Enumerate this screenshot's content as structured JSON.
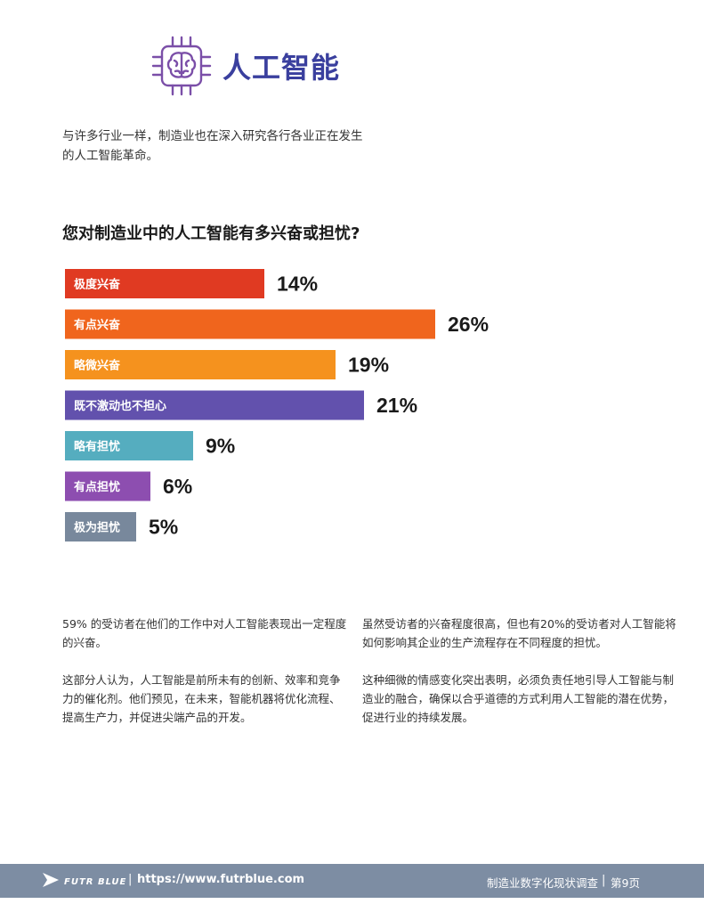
{
  "header": {
    "title": "人工智能",
    "icon": "brain-chip-icon",
    "icon_color": "#7b4fa8",
    "title_color": "#3a3f9e"
  },
  "intro": "与许多行业一样，制造业也在深入研究各行各业正在发生的人工智能革命。",
  "question": "您对制造业中的人工智能有多兴奋或担忧?",
  "chart_data": {
    "type": "bar",
    "orientation": "horizontal",
    "categories": [
      "极度兴奋",
      "有点兴奋",
      "略微兴奋",
      "既不激动也不担心",
      "略有担忧",
      "有点担忧",
      "极为担忧"
    ],
    "values": [
      14,
      26,
      19,
      21,
      9,
      6,
      5
    ],
    "value_labels": [
      "14%",
      "26%",
      "19%",
      "21%",
      "9%",
      "6%",
      "5%"
    ],
    "colors": [
      "#e03a22",
      "#f0651d",
      "#f5921e",
      "#6251ad",
      "#55adbf",
      "#8d4eb0",
      "#78889c"
    ],
    "unit": "%"
  },
  "columns": {
    "left": [
      "59% 的受访者在他们的工作中对人工智能表现出一定程度的兴奋。",
      "这部分人认为，人工智能是前所未有的创新、效率和竞争力的催化剂。他们预见，在未来，智能机器将优化流程、提高生产力，并促进尖端产品的开发。"
    ],
    "right": [
      "虽然受访者的兴奋程度很高，但也有20%的受访者对人工智能将如何影响其企业的生产流程存在不同程度的担忧。",
      "这种细微的情感变化突出表明，必须负责任地引导人工智能与制造业的融合，确保以合乎道德的方式利用人工智能的潜在优势，促进行业的持续发展。"
    ]
  },
  "footer": {
    "brand": "FUTR BLUE",
    "logo_icon": "futrblue-logo-icon",
    "separator": "|",
    "url": "https://www.futrblue.com",
    "doc_title": "制造业数字化现状调查",
    "page": "第9页",
    "bg_color": "#7d8da3"
  }
}
